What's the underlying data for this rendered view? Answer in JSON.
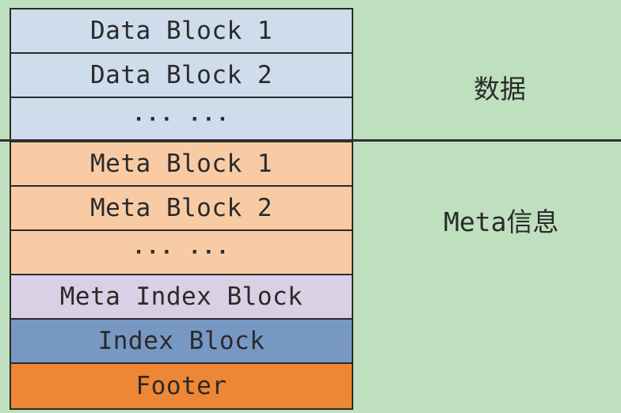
{
  "blocks": [
    {
      "label": "Data Block 1",
      "kind": "data"
    },
    {
      "label": "Data Block 2",
      "kind": "data"
    },
    {
      "label": "··· ···",
      "kind": "data"
    },
    {
      "label": "Meta Block 1",
      "kind": "meta"
    },
    {
      "label": "Meta Block 2",
      "kind": "meta"
    },
    {
      "label": "··· ···",
      "kind": "meta"
    },
    {
      "label": "Meta Index Block",
      "kind": "meta-index"
    },
    {
      "label": "Index Block",
      "kind": "index"
    },
    {
      "label": "Footer",
      "kind": "footer"
    }
  ],
  "regions": {
    "data_label": "数据",
    "meta_label": "Meta信息"
  },
  "colors": {
    "background": "#bfe0bf",
    "data_block": "#cfdcec",
    "meta_block": "#f9cba5",
    "meta_index_block": "#dad0e5",
    "index_block": "#7898c4",
    "footer_block": "#ee8735",
    "border": "#2b2b2b"
  }
}
